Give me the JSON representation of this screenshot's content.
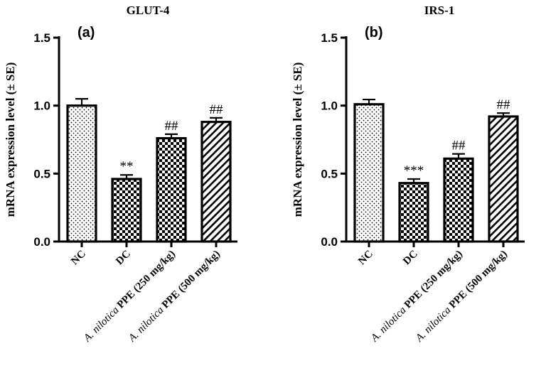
{
  "chart_data": [
    {
      "type": "bar",
      "panel_label": "(a)",
      "title": "GLUT-4",
      "ylabel": "mRNA expression level (± SE)",
      "ylim": [
        0,
        1.5
      ],
      "yticks": [
        "0.0",
        "0.5",
        "1.0",
        "1.5"
      ],
      "categories": [
        {
          "prefix": "",
          "label": "NC"
        },
        {
          "prefix": "",
          "label": "DC"
        },
        {
          "prefix": "A. nilotica ",
          "label": "PPE (250 mg/kg)"
        },
        {
          "prefix": "A. nilotica ",
          "label": "PPE (500 mg/kg)"
        }
      ],
      "values": [
        1.0,
        0.46,
        0.76,
        0.88
      ],
      "errors": [
        0.05,
        0.03,
        0.03,
        0.03
      ],
      "annotations": [
        "",
        "**",
        "##",
        "##"
      ],
      "patterns": [
        "dots",
        "checker",
        "checker",
        "diagonal"
      ],
      "grid": false
    },
    {
      "type": "bar",
      "panel_label": "(b)",
      "title": "IRS-1",
      "ylabel": "mRNA expression level (± SE)",
      "ylim": [
        0,
        1.5
      ],
      "yticks": [
        "0.0",
        "0.5",
        "1.0",
        "1.5"
      ],
      "categories": [
        {
          "prefix": "",
          "label": "NC"
        },
        {
          "prefix": "",
          "label": "DC"
        },
        {
          "prefix": "A. nilotica ",
          "label": "PPE (250 mg/kg)"
        },
        {
          "prefix": "A. nilotica ",
          "label": "PPE (500 mg/kg)"
        }
      ],
      "values": [
        1.01,
        0.43,
        0.61,
        0.92
      ],
      "errors": [
        0.035,
        0.03,
        0.035,
        0.025
      ],
      "annotations": [
        "",
        "***",
        "##",
        "##"
      ],
      "patterns": [
        "dots",
        "checker",
        "checker",
        "diagonal"
      ],
      "grid": false
    }
  ]
}
